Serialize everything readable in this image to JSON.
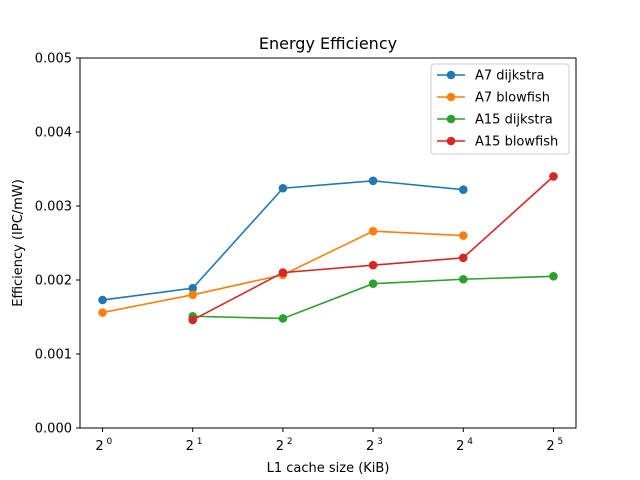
{
  "chart_data": {
    "type": "line",
    "title": "Energy Efficiency",
    "xlabel": "L1 cache size (KiB)",
    "ylabel": "Efficiency (IPC/mW)",
    "x_scale": "log2",
    "x_ticks": [
      {
        "value": 1,
        "base": "2",
        "exp": "0"
      },
      {
        "value": 2,
        "base": "2",
        "exp": "1"
      },
      {
        "value": 4,
        "base": "2",
        "exp": "2"
      },
      {
        "value": 8,
        "base": "2",
        "exp": "3"
      },
      {
        "value": 16,
        "base": "2",
        "exp": "4"
      },
      {
        "value": 32,
        "base": "2",
        "exp": "5"
      }
    ],
    "y_ticks": [
      "0.000",
      "0.001",
      "0.002",
      "0.003",
      "0.004",
      "0.005"
    ],
    "ylim": [
      0,
      0.005
    ],
    "grid": false,
    "legend_position": "top-right",
    "series": [
      {
        "name": "A7 dijkstra",
        "color": "#1f77b4",
        "x": [
          1,
          2,
          4,
          8,
          16
        ],
        "y": [
          0.00173,
          0.00189,
          0.00324,
          0.00334,
          0.00322
        ]
      },
      {
        "name": "A7 blowfish",
        "color": "#ff7f0e",
        "x": [
          1,
          2,
          4,
          8,
          16
        ],
        "y": [
          0.00156,
          0.0018,
          0.00207,
          0.00266,
          0.0026
        ]
      },
      {
        "name": "A15 dijkstra",
        "color": "#2ca02c",
        "x": [
          2,
          4,
          8,
          16,
          32
        ],
        "y": [
          0.00151,
          0.00148,
          0.00195,
          0.00201,
          0.00205
        ]
      },
      {
        "name": "A15 blowfish",
        "color": "#d62728",
        "x": [
          2,
          4,
          8,
          16,
          32
        ],
        "y": [
          0.00146,
          0.0021,
          0.0022,
          0.0023,
          0.0034
        ]
      }
    ]
  }
}
